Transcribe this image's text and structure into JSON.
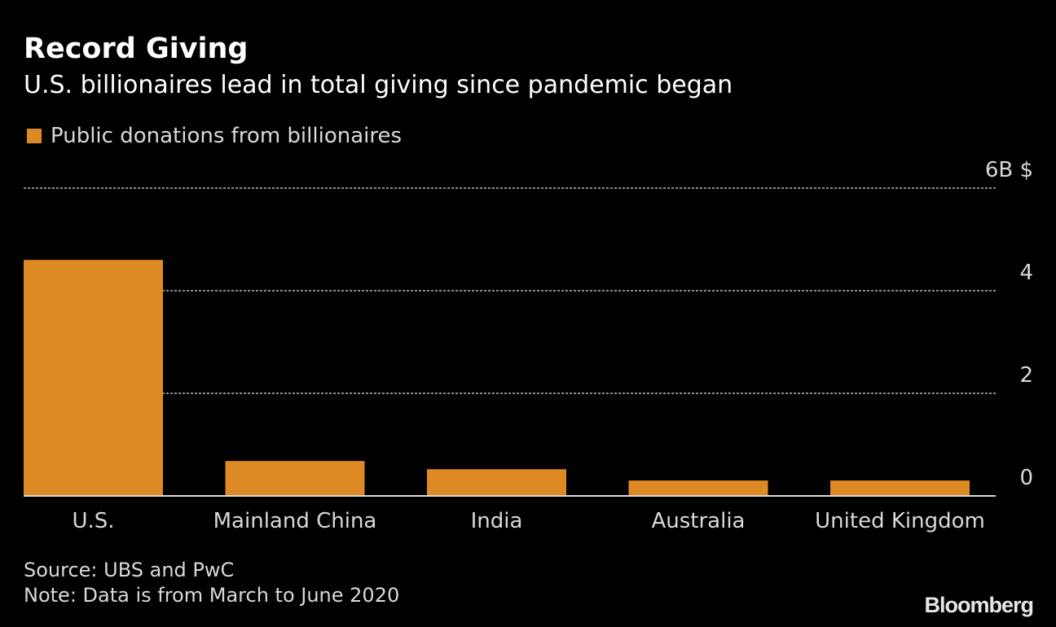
{
  "title": "Record Giving",
  "subtitle": "U.S. billionaires lead in total giving since pandemic began",
  "source": "Source: UBS and PwC",
  "note": "Note: Data is from March to June 2020",
  "logo": "Bloomberg",
  "chart_data": {
    "type": "bar",
    "categories": [
      "U.S.",
      "Mainland China",
      "India",
      "Australia",
      "United Kingdom"
    ],
    "series": [
      {
        "name": "Public donations from billionaires",
        "values": [
          4.6,
          0.68,
          0.52,
          0.3,
          0.3
        ],
        "color": "#de8a24"
      }
    ],
    "ylim": [
      0,
      6
    ],
    "yticks": [
      0,
      2,
      4,
      6
    ],
    "ytick_labels": [
      "0",
      "2",
      "4",
      "6B $"
    ],
    "grid": true,
    "legend": "top-left",
    "yaxis_side": "right"
  }
}
